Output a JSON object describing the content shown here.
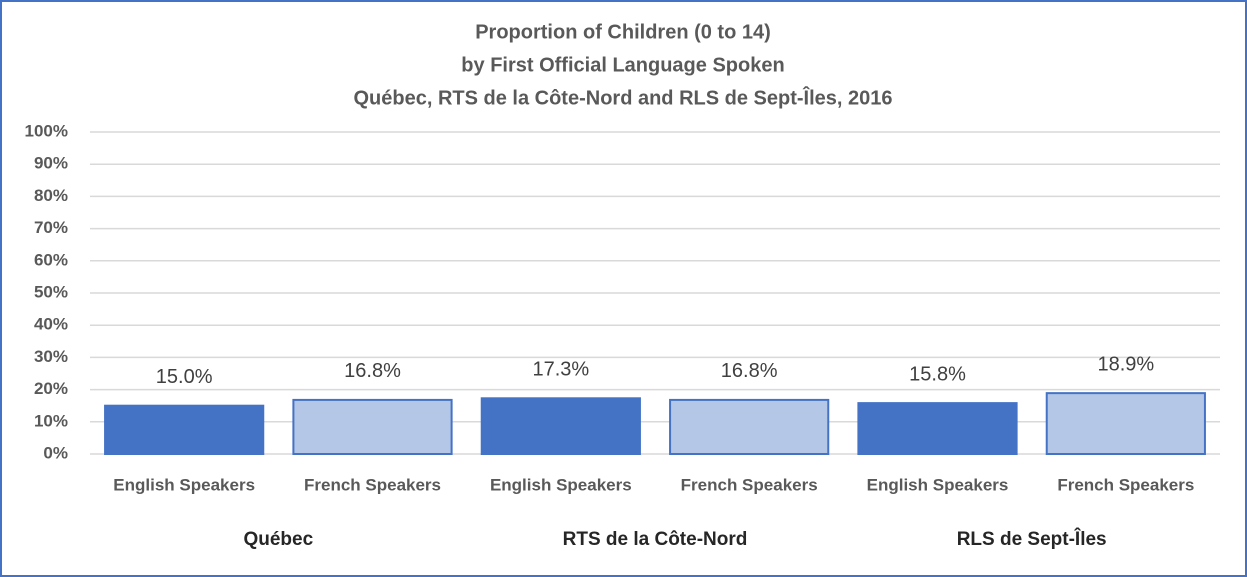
{
  "chart_data": {
    "type": "bar",
    "title": [
      "Proportion of Children (0 to 14)",
      "by First Official Language Spoken",
      "Québec, RTS de la Côte-Nord and RLS de Sept-Îles, 2016"
    ],
    "categories": [
      "English Speakers",
      "French Speakers",
      "English Speakers",
      "French Speakers",
      "English Speakers",
      "French Speakers"
    ],
    "groups": [
      "Québec",
      "RTS de la Côte-Nord",
      "RLS de Sept-Îles"
    ],
    "values": [
      15.0,
      16.8,
      17.3,
      16.8,
      15.8,
      18.9
    ],
    "value_labels": [
      "15.0%",
      "16.8%",
      "17.3%",
      "16.8%",
      "15.8%",
      "18.9%"
    ],
    "colors": [
      "#4472c4",
      "#b4c7e7",
      "#4472c4",
      "#b4c7e7",
      "#4472c4",
      "#b4c7e7"
    ],
    "edge_color": "#4472c4",
    "ylim": [
      0,
      100
    ],
    "yticks": [
      {
        "value": 0,
        "label": "0%"
      },
      {
        "value": 10,
        "label": "10%"
      },
      {
        "value": 20,
        "label": "20%"
      },
      {
        "value": 30,
        "label": "30%"
      },
      {
        "value": 40,
        "label": "40%"
      },
      {
        "value": 50,
        "label": "50%"
      },
      {
        "value": 60,
        "label": "60%"
      },
      {
        "value": 70,
        "label": "70%"
      },
      {
        "value": 80,
        "label": "80%"
      },
      {
        "value": 90,
        "label": "90%"
      },
      {
        "value": 100,
        "label": "100%"
      }
    ],
    "grid": true
  }
}
